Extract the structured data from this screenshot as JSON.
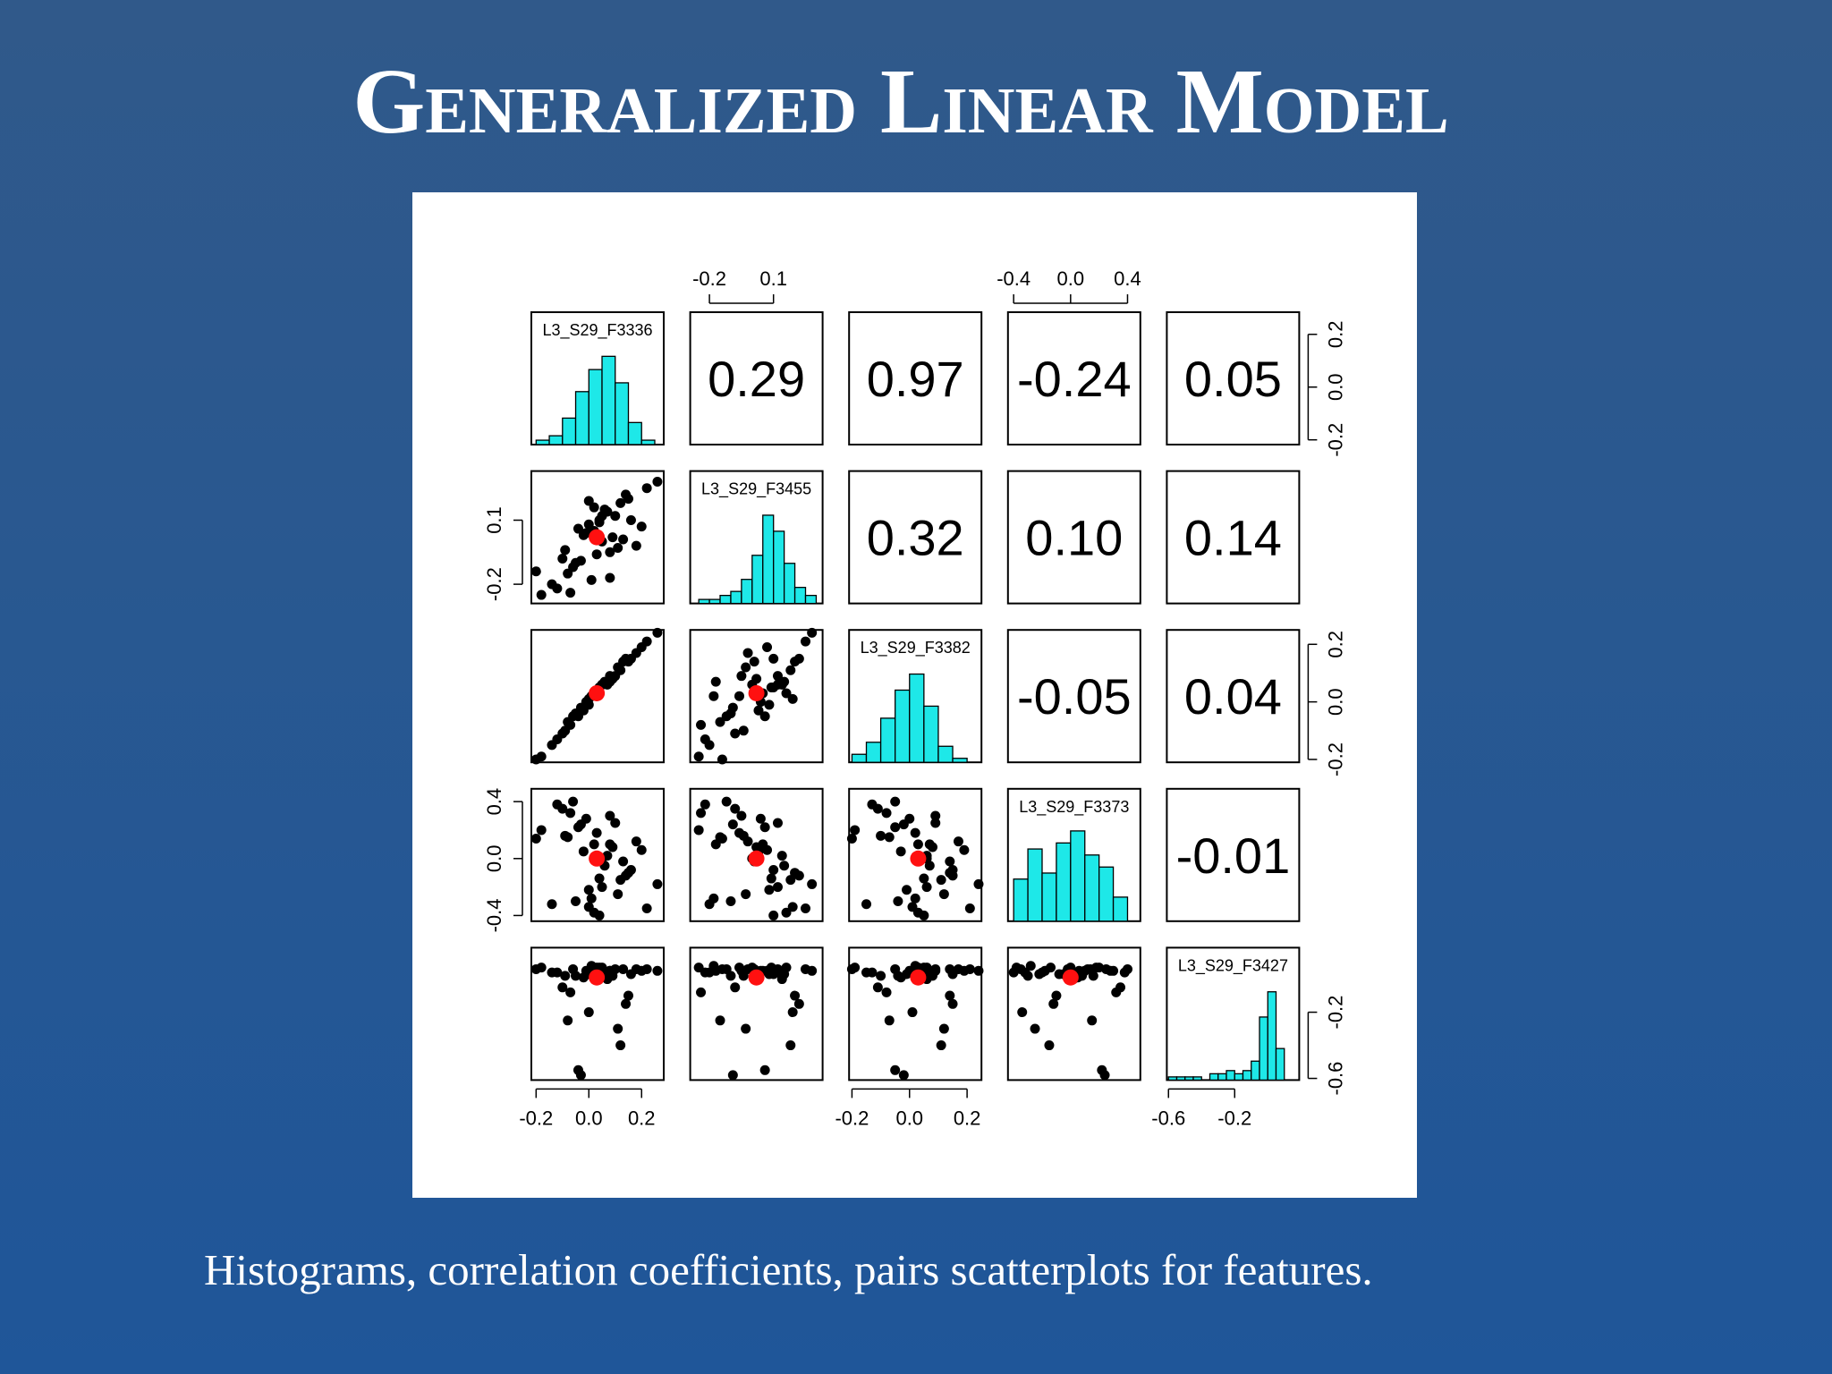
{
  "slide": {
    "title": "Generalized Linear Model",
    "caption": "Histograms, correlation coefficients, pairs scatterplots for features."
  },
  "pairs_plot": {
    "variables": [
      {
        "name": "L3_S29_F3336",
        "lim": [
          -0.218,
          0.284
        ],
        "ticks": [
          {
            "value": -0.2,
            "label": "-0.2"
          },
          {
            "value": 0,
            "label": "0.0"
          },
          {
            "value": 0.2,
            "label": "0.2"
          }
        ],
        "observations": [
          0.02,
          -0.05,
          0.1,
          0.15,
          -0.12,
          0.05,
          0.0,
          -0.08,
          0.22,
          0.08,
          -0.02,
          0.12,
          -0.18,
          0.04,
          0.18,
          -0.1,
          0.06,
          0.01,
          -0.04,
          0.26,
          0.09,
          -0.06,
          0.14,
          0.03,
          -0.14,
          0.07,
          -0.01,
          0.11,
          -0.2,
          0.16,
          0.02,
          -0.07,
          0.2,
          0.05,
          -0.03,
          0.13,
          -0.09,
          0.0,
          0.08,
          0.04
        ],
        "mean": 0.03,
        "histogram": {
          "bins": [
            -0.2,
            -0.15,
            -0.1,
            -0.05,
            0,
            0.05,
            0.1,
            0.15,
            0.2,
            0.25
          ],
          "counts": [
            1,
            2,
            6,
            12,
            17,
            20,
            14,
            5,
            1
          ],
          "ylim": [
            0,
            30
          ]
        }
      },
      {
        "name": "L3_S29_F3455",
        "lim": [
          -0.29,
          0.33
        ],
        "ticks": [
          {
            "value": -0.2,
            "label": "-0.2"
          },
          {
            "value": 0.1,
            "label": "0.1"
          }
        ],
        "observations": [
          0.05,
          -0.1,
          0.12,
          0.2,
          -0.22,
          0.0,
          0.08,
          -0.15,
          0.25,
          -0.05,
          0.03,
          0.18,
          -0.25,
          0.1,
          -0.02,
          -0.08,
          0.15,
          -0.18,
          0.06,
          0.28,
          0.02,
          -0.12,
          0.22,
          -0.06,
          -0.2,
          0.14,
          0.04,
          -0.03,
          -0.14,
          0.1,
          0.16,
          -0.24,
          0.07,
          0.12,
          -0.09,
          0.01,
          -0.04,
          0.19,
          -0.17,
          0.09
        ],
        "mean": 0.02,
        "histogram": {
          "bins": [
            -0.25,
            -0.2,
            -0.15,
            -0.1,
            -0.05,
            0,
            0.05,
            0.1,
            0.15,
            0.2,
            0.25,
            0.3
          ],
          "counts": [
            1,
            1,
            2,
            3,
            6,
            12,
            22,
            18,
            10,
            4,
            2
          ],
          "ylim": [
            0,
            33
          ]
        }
      },
      {
        "name": "L3_S29_F3382",
        "lim": [
          -0.21,
          0.25
        ],
        "ticks": [
          {
            "value": -0.2,
            "label": "-0.2"
          },
          {
            "value": 0,
            "label": "0.0"
          },
          {
            "value": 0.2,
            "label": "0.2"
          }
        ],
        "observations": [
          0.03,
          -0.04,
          0.09,
          0.14,
          -0.13,
          0.06,
          -0.01,
          -0.07,
          0.21,
          0.09,
          -0.03,
          0.11,
          -0.19,
          0.05,
          0.17,
          -0.11,
          0.07,
          0.02,
          -0.05,
          0.24,
          0.08,
          -0.05,
          0.15,
          0.02,
          -0.15,
          0.06,
          0.0,
          0.12,
          -0.2,
          0.15,
          0.03,
          -0.08,
          0.19,
          0.06,
          -0.02,
          0.14,
          -0.1,
          0.01,
          0.07,
          0.05
        ],
        "mean": 0.03,
        "histogram": {
          "bins": [
            -0.2,
            -0.15,
            -0.1,
            -0.05,
            0,
            0.05,
            0.1,
            0.15,
            0.2
          ],
          "counts": [
            2,
            5,
            11,
            18,
            22,
            14,
            4,
            1
          ],
          "ylim": [
            0,
            33
          ]
        }
      },
      {
        "name": "L3_S29_F3373",
        "lim": [
          -0.44,
          0.49
        ],
        "ticks": [
          {
            "value": -0.4,
            "label": "-0.4"
          },
          {
            "value": 0,
            "label": "0.0"
          },
          {
            "value": 0.4,
            "label": "0.4"
          }
        ],
        "observations": [
          0.1,
          -0.3,
          0.25,
          -0.1,
          0.38,
          0.0,
          -0.22,
          0.15,
          -0.35,
          0.3,
          0.05,
          -0.15,
          0.2,
          -0.4,
          0.12,
          0.35,
          -0.05,
          -0.28,
          0.22,
          -0.18,
          0.08,
          0.4,
          -0.12,
          0.18,
          -0.32,
          0.02,
          0.28,
          -0.25,
          0.14,
          -0.08,
          -0.38,
          0.32,
          0.06,
          -0.2,
          0.24,
          -0.02,
          0.16,
          -0.34,
          0.1,
          -0.14
        ],
        "mean": 0,
        "histogram": {
          "bins": [
            -0.4,
            -0.3,
            -0.2,
            -0.1,
            0,
            0.1,
            0.2,
            0.3,
            0.4
          ],
          "counts": [
            7,
            12,
            8,
            13,
            15,
            11,
            9,
            4
          ],
          "ylim": [
            0,
            22
          ]
        }
      },
      {
        "name": "L3_S29_F3427",
        "lim": [
          -0.61,
          0.19
        ],
        "ticks": [
          {
            "value": -0.6,
            "label": "-0.6"
          },
          {
            "value": -0.2,
            "label": "-0.2"
          }
        ],
        "observations": [
          0.05,
          0.02,
          0.06,
          -0.1,
          0.04,
          0.07,
          0.03,
          -0.25,
          0.06,
          0.05,
          0.01,
          -0.4,
          0.07,
          0.04,
          0.06,
          -0.05,
          0.03,
          0.08,
          -0.55,
          0.05,
          0.02,
          0.06,
          -0.15,
          0.07,
          0.04,
          0.0,
          0.05,
          -0.3,
          0.06,
          0.03,
          0.07,
          -0.08,
          0.05,
          0.04,
          -0.58,
          0.06,
          0.02,
          -0.2,
          0.05,
          0.07
        ],
        "mean": 0.01,
        "histogram": {
          "bins": [
            -0.6,
            -0.55,
            -0.5,
            -0.45,
            -0.4,
            -0.35,
            -0.3,
            -0.25,
            -0.2,
            -0.15,
            -0.1,
            -0.05,
            0,
            0.05,
            0.1
          ],
          "counts": [
            1,
            1,
            1,
            1,
            0,
            2,
            2,
            3,
            2,
            3,
            6,
            20,
            28,
            10
          ],
          "ylim": [
            0,
            42
          ]
        }
      }
    ],
    "correlations": [
      [
        "0.29",
        "0.97",
        "-0.24",
        "0.05"
      ],
      [
        "0.32",
        "0.10",
        "0.14"
      ],
      [
        "-0.05",
        "0.04"
      ],
      [
        "-0.01"
      ]
    ]
  }
}
